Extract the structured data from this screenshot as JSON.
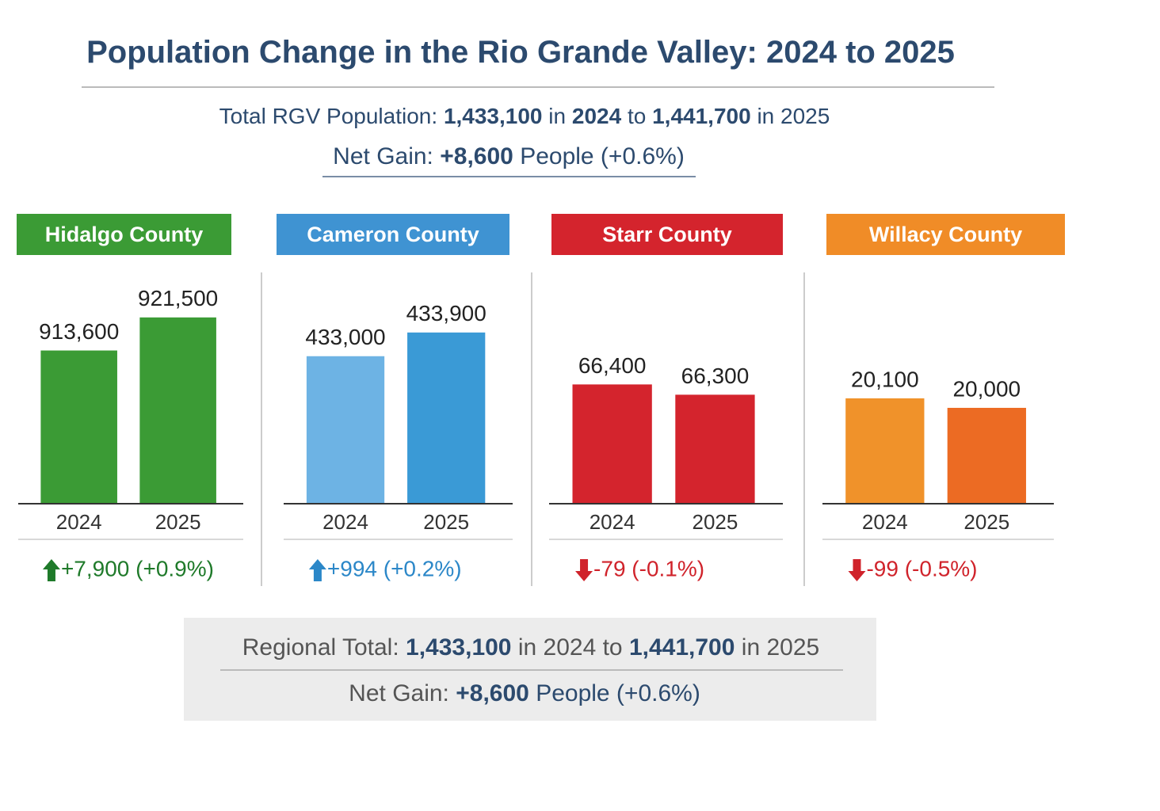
{
  "header": {
    "title": "Population Change in the Rio Grande Valley: 2024 to 2025",
    "total_line": [
      "Total RGV Population:",
      "1,433,100",
      "in",
      "2024",
      "to",
      "1,441,700",
      "in 2025"
    ],
    "gain_line": [
      "Net Gain:",
      "+8,600",
      "People (+0.6%)"
    ]
  },
  "chart_data": [
    {
      "type": "bar",
      "title": "Hidalgo County",
      "header_color": "#3b9b35",
      "categories": [
        "2024",
        "2025"
      ],
      "values": [
        913600,
        921500
      ],
      "value_labels": [
        "913,600",
        "921,500"
      ],
      "colors": [
        "#3b9b35",
        "#3b9b35"
      ],
      "ylim": [
        877000,
        933000
      ],
      "change": {
        "text": "+7,900 (+0.9%)",
        "direction": "up",
        "color": "#1f7a2a"
      }
    },
    {
      "type": "bar",
      "title": "Cameron County",
      "header_color": "#3f93d2",
      "categories": [
        "2024",
        "2025"
      ],
      "values": [
        433000,
        433900
      ],
      "value_labels": [
        "433,000",
        "433,900"
      ],
      "colors": [
        "#6db3e4",
        "#3a9ad6"
      ],
      "ylim": [
        427400,
        436300
      ],
      "change": {
        "text": "+994 (+0.2%)",
        "direction": "up",
        "color": "#2b87c8"
      }
    },
    {
      "type": "bar",
      "title": "Starr County",
      "header_color": "#d4242d",
      "categories": [
        "2024",
        "2025"
      ],
      "values": [
        66400,
        66300
      ],
      "value_labels": [
        "66,400",
        "66,300"
      ],
      "colors": [
        "#d4242d",
        "#d4242d"
      ],
      "ylim": [
        65240,
        67520
      ],
      "change": {
        "text": "-79 (-0.1%)",
        "direction": "down",
        "color": "#d0232b"
      }
    },
    {
      "type": "bar",
      "title": "Willacy County",
      "header_color": "#f08c27",
      "categories": [
        "2024",
        "2025"
      ],
      "values": [
        20100,
        20000
      ],
      "value_labels": [
        "20,100",
        "20,000"
      ],
      "colors": [
        "#f0922a",
        "#ec6b23"
      ],
      "ylim": [
        18990,
        21460
      ],
      "change": {
        "text": "-99 (-0.5%)",
        "direction": "down",
        "color": "#d0232b"
      }
    }
  ],
  "footer": {
    "total_line": [
      "Regional Total:",
      "1,433,100",
      "in 2024 to",
      "1,441,700",
      "in 2025"
    ],
    "gain_line": [
      "Net Gain:",
      "+8,600",
      "People (+0.6%)"
    ]
  }
}
